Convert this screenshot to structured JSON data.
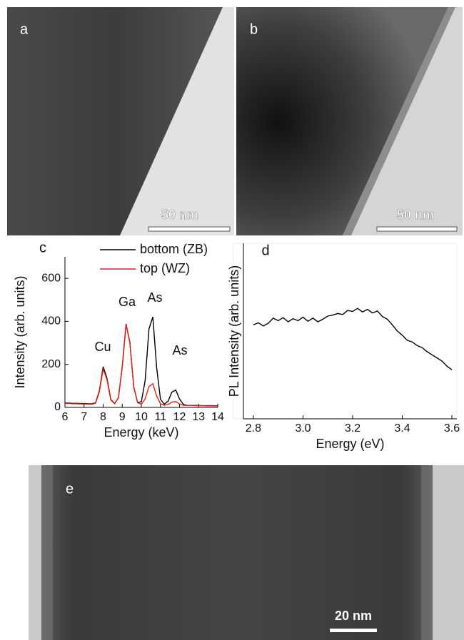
{
  "panels": [
    {
      "label": "a",
      "scale_bar": "50 nm"
    },
    {
      "label": "b",
      "scale_bar": "50 nm"
    },
    {
      "label": "e",
      "scale_bar": "20 nm"
    }
  ],
  "chart_data": [
    {
      "type": "line",
      "label": "c",
      "xlabel": "Energy (keV)",
      "ylabel": "Intensity (arb. units)",
      "xlim": [
        6,
        14
      ],
      "xticks": [
        6,
        7,
        8,
        9,
        10,
        11,
        12,
        13,
        14
      ],
      "ylim": [
        0,
        700
      ],
      "yticks": [
        0,
        200,
        400,
        600
      ],
      "grid": false,
      "legend": "top",
      "annotations": [
        "Cu",
        "Ga",
        "As",
        "As"
      ],
      "x": [
        6.0,
        6.2,
        6.4,
        6.6,
        6.8,
        7.0,
        7.2,
        7.4,
        7.6,
        7.8,
        8.0,
        8.2,
        8.4,
        8.6,
        8.8,
        9.0,
        9.2,
        9.4,
        9.6,
        9.8,
        10.0,
        10.2,
        10.4,
        10.6,
        10.8,
        11.0,
        11.2,
        11.4,
        11.6,
        11.8,
        12.0,
        12.2,
        12.4,
        12.6,
        12.8,
        13.0,
        13.2,
        13.4,
        13.6,
        13.8,
        14.0
      ],
      "series": [
        {
          "name": "bottom (ZB)",
          "color": "#000000",
          "values": [
            20,
            20,
            19,
            19,
            18,
            18,
            17,
            17,
            21,
            77,
            189,
            137,
            37,
            18,
            45,
            190,
            388,
            304,
            97,
            23,
            26,
            124,
            365,
            421,
            186,
            38,
            15,
            29,
            71,
            81,
            39,
            14,
            9,
            9,
            9,
            9,
            8,
            8,
            8,
            8,
            7
          ]
        },
        {
          "name": "top (WZ)",
          "color": "#e0201b",
          "values": [
            18,
            18,
            17,
            17,
            16,
            16,
            15,
            15,
            19,
            72,
            178,
            130,
            35,
            17,
            44,
            189,
            386,
            303,
            96,
            22,
            15,
            39,
            97,
            110,
            54,
            17,
            10,
            14,
            25,
            27,
            16,
            10,
            9,
            9,
            8,
            8,
            8,
            7,
            7,
            7,
            6
          ]
        }
      ]
    },
    {
      "type": "line",
      "label": "d",
      "xlabel": "Energy (eV)",
      "ylabel": "PL Intensity (arb. units)",
      "xlim": [
        2.76,
        3.62
      ],
      "xticks": [
        2.8,
        {
          "value": 3,
          "label": "3.0"
        },
        3.2,
        3.4,
        3.6
      ],
      "ylim": [
        0,
        3.4
      ],
      "grid": false,
      "x": [
        2.8,
        2.82,
        2.84,
        2.86,
        2.88,
        2.9,
        2.92,
        2.94,
        2.96,
        2.98,
        3.0,
        3.02,
        3.04,
        3.06,
        3.08,
        3.1,
        3.12,
        3.14,
        3.16,
        3.18,
        3.2,
        3.22,
        3.24,
        3.26,
        3.28,
        3.3,
        3.32,
        3.34,
        3.36,
        3.38,
        3.4,
        3.42,
        3.44,
        3.46,
        3.48,
        3.5,
        3.52,
        3.54,
        3.56,
        3.58,
        3.6
      ],
      "series": [
        {
          "color": "#000000",
          "values": [
            1.82,
            1.86,
            1.8,
            1.85,
            1.95,
            1.9,
            1.96,
            1.88,
            1.94,
            1.9,
            1.97,
            1.89,
            1.95,
            1.88,
            1.93,
            1.99,
            2.01,
            2.04,
            2.02,
            2.1,
            2.08,
            2.14,
            2.07,
            2.12,
            2.05,
            2.09,
            1.98,
            1.93,
            1.82,
            1.7,
            1.62,
            1.52,
            1.49,
            1.42,
            1.38,
            1.3,
            1.24,
            1.18,
            1.12,
            1.02,
            0.95
          ]
        }
      ]
    }
  ]
}
